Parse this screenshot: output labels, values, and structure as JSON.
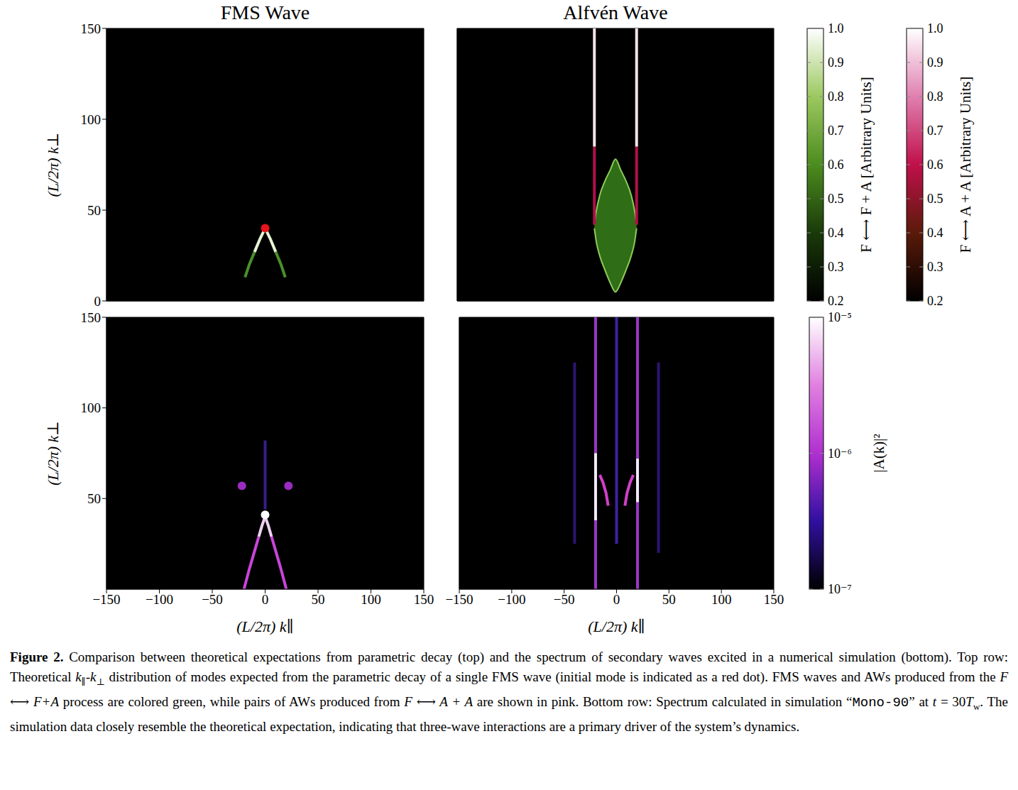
{
  "chart_data": [
    {
      "title": "FMS Wave",
      "type": "line",
      "xlim": [
        -150,
        150
      ],
      "ylim": [
        0,
        150
      ],
      "xticks": [
        {
          "value": -150,
          "label": "−150"
        },
        {
          "value": -100,
          "label": "−100"
        },
        {
          "value": -50,
          "label": "−50"
        },
        0,
        50,
        100,
        150
      ],
      "yticks": [
        0,
        50,
        100,
        150
      ],
      "tick_labels": "y",
      "ylabel": "(L/2π) k⊥",
      "series": [
        {
          "type": "line",
          "color": "#4a8f2a",
          "x": [
            -19,
            -15,
            -10
          ],
          "y": [
            13,
            20,
            27
          ]
        },
        {
          "type": "line",
          "color": "#e6f4d6",
          "x": [
            -10,
            -5,
            0
          ],
          "y": [
            27,
            34,
            40
          ]
        },
        {
          "type": "line",
          "color": "#4a8f2a",
          "x": [
            19,
            15,
            10
          ],
          "y": [
            13,
            20,
            27
          ]
        },
        {
          "type": "line",
          "color": "#e6f4d6",
          "x": [
            10,
            5,
            0
          ],
          "y": [
            27,
            34,
            40
          ]
        },
        {
          "type": "scatter",
          "color": "#e8141c",
          "x": [
            0
          ],
          "y": [
            40
          ]
        }
      ]
    },
    {
      "title": "Alfvén Wave",
      "type": "line",
      "xlim": [
        -150,
        150
      ],
      "ylim": [
        0,
        150
      ],
      "xticks": [
        {
          "value": -150,
          "label": "−150"
        },
        {
          "value": -100,
          "label": "−100"
        },
        {
          "value": -50,
          "label": "−50"
        },
        0,
        50,
        100,
        150
      ],
      "yticks": [
        0,
        50,
        100,
        150
      ],
      "tick_labels": false,
      "series": [
        {
          "type": "area",
          "color": "#2f6e16",
          "x": [
            -20,
            -18,
            -15,
            -10,
            -5,
            0,
            5,
            10,
            15,
            18,
            20
          ],
          "y_low": [
            40,
            32,
            25,
            17,
            10,
            5,
            10,
            17,
            25,
            32,
            40
          ],
          "y_high": [
            42,
            50,
            58,
            66,
            72,
            78,
            72,
            66,
            58,
            50,
            42
          ]
        },
        {
          "type": "line",
          "color": "#b0104a",
          "x": [
            -20,
            -20
          ],
          "y": [
            42,
            85
          ]
        },
        {
          "type": "line",
          "color": "#f4e4ec",
          "x": [
            -20,
            -20
          ],
          "y": [
            85,
            150
          ]
        },
        {
          "type": "line",
          "color": "#b0104a",
          "x": [
            20,
            20
          ],
          "y": [
            42,
            85
          ]
        },
        {
          "type": "line",
          "color": "#f4e4ec",
          "x": [
            20,
            20
          ],
          "y": [
            85,
            150
          ]
        }
      ]
    },
    {
      "type": "line",
      "xlim": [
        -150,
        150
      ],
      "ylim": [
        0,
        150
      ],
      "xticks": [
        {
          "value": -150,
          "label": "−150"
        },
        {
          "value": -100,
          "label": "−100"
        },
        {
          "value": -50,
          "label": "−50"
        },
        0,
        50,
        100,
        150
      ],
      "yticks": [
        50,
        100,
        150
      ],
      "tick_labels": true,
      "xlabel": "(L/2π) k∥",
      "ylabel": "(L/2π) k⊥",
      "series": [
        {
          "type": "line",
          "color": "#c845d8",
          "x": [
            -20,
            -15,
            -10,
            -6
          ],
          "y": [
            0,
            11,
            21,
            29
          ]
        },
        {
          "type": "line",
          "color": "#f0d0f4",
          "x": [
            -6,
            -3,
            0
          ],
          "y": [
            29,
            35,
            40
          ]
        },
        {
          "type": "line",
          "color": "#c845d8",
          "x": [
            20,
            15,
            10,
            6
          ],
          "y": [
            0,
            11,
            21,
            29
          ]
        },
        {
          "type": "line",
          "color": "#f0d0f4",
          "x": [
            6,
            3,
            0
          ],
          "y": [
            29,
            35,
            40
          ]
        },
        {
          "type": "line",
          "color": "#3a1c8c",
          "x": [
            0,
            0
          ],
          "y": [
            44,
            82
          ]
        },
        {
          "type": "scatter",
          "color": "#ffffff",
          "x": [
            0
          ],
          "y": [
            41
          ]
        },
        {
          "type": "scatter",
          "color": "#9a2cc0",
          "x": [
            -22,
            22
          ],
          "y": [
            57,
            57
          ]
        }
      ]
    },
    {
      "type": "line",
      "xlim": [
        -150,
        150
      ],
      "ylim": [
        0,
        150
      ],
      "xticks": [
        {
          "value": -150,
          "label": "−150"
        },
        {
          "value": -100,
          "label": "−100"
        },
        {
          "value": -50,
          "label": "−50"
        },
        0,
        50,
        100,
        150
      ],
      "yticks": [
        0,
        50,
        100,
        150
      ],
      "tick_labels": "x",
      "xlabel": "(L/2π) k∥",
      "series": [
        {
          "type": "line",
          "color": "#2c1470",
          "x": [
            -40,
            -40
          ],
          "y": [
            25,
            125
          ]
        },
        {
          "type": "line",
          "color": "#2c1470",
          "x": [
            40,
            40
          ],
          "y": [
            20,
            125
          ]
        },
        {
          "type": "line",
          "color": "#3c22a0",
          "x": [
            0,
            0
          ],
          "y": [
            25,
            150
          ]
        },
        {
          "type": "line",
          "color": "#9b36c8",
          "x": [
            -20,
            -20
          ],
          "y": [
            0,
            150
          ]
        },
        {
          "type": "line",
          "color": "#f2eafa",
          "x": [
            -20,
            -20
          ],
          "y": [
            38,
            75
          ]
        },
        {
          "type": "line",
          "color": "#9b36c8",
          "x": [
            20,
            20
          ],
          "y": [
            0,
            150
          ]
        },
        {
          "type": "line",
          "color": "#f2eafa",
          "x": [
            20,
            20
          ],
          "y": [
            48,
            72
          ]
        },
        {
          "type": "line",
          "color": "#d040c8",
          "x": [
            -16,
            -13,
            -10,
            -8
          ],
          "y": [
            63,
            59,
            53,
            46
          ]
        },
        {
          "type": "line",
          "color": "#d040c8",
          "x": [
            16,
            13,
            10,
            8
          ],
          "y": [
            63,
            59,
            53,
            46
          ]
        }
      ]
    }
  ],
  "colorbars": [
    {
      "label": "F ⟷ F + A [Arbitrary Units]",
      "range": [
        0.2,
        1.0
      ],
      "ticks": [
        0.2,
        0.3,
        0.4,
        0.5,
        0.6,
        0.7,
        0.8,
        0.9,
        {
          "value": 1,
          "label": "1.0"
        }
      ],
      "colors": [
        "#000000",
        "#1a3a0a",
        "#4c8c1e",
        "#9cc860",
        "#ffffff"
      ]
    },
    {
      "label": "F ⟷ A + A [Arbitrary Units]",
      "range": [
        0.2,
        1.0
      ],
      "ticks": [
        0.2,
        0.3,
        0.4,
        0.5,
        0.6,
        0.7,
        0.8,
        0.9,
        {
          "value": 1,
          "label": "1.0"
        }
      ],
      "colors": [
        "#000000",
        "#5a1a0a",
        "#c0104a",
        "#e080b0",
        "#ffffff"
      ]
    },
    {
      "label": "|A(k)|²",
      "range": [
        1e-07,
        1e-05
      ],
      "log": true,
      "ticks": [
        {
          "value": 1e-07,
          "label": "10⁻⁷"
        },
        {
          "value": 1e-06,
          "label": "10⁻⁶"
        },
        {
          "value": 1e-05,
          "label": "10⁻⁵"
        }
      ],
      "colors": [
        "#000000",
        "#3010a0",
        "#b030d0",
        "#e080e0",
        "#ffffff"
      ]
    }
  ],
  "caption": {
    "label": "Figure 2.",
    "runs": [
      {
        "text": " Comparison between theoretical expectations from parametric decay (top) and the spectrum of secondary waves excited in a numerical simulation (bottom). Top row: Theoretical "
      },
      {
        "text": "k",
        "style": "italic"
      },
      {
        "text": "∥",
        "style": "sub"
      },
      {
        "text": "-"
      },
      {
        "text": "k",
        "style": "italic"
      },
      {
        "text": "⊥",
        "style": "sub"
      },
      {
        "text": " distribution of modes expected from the parametric decay of a single FMS wave (initial mode is indicated as a red dot). FMS waves and AWs produced from the "
      },
      {
        "text": "F ⟷ F+A",
        "style": "italic"
      },
      {
        "text": " process are colored green, while pairs of AWs produced from "
      },
      {
        "text": "F ⟷ A + A",
        "style": "italic"
      },
      {
        "text": " are shown in pink. Bottom row: Spectrum calculated in simulation “"
      },
      {
        "text": "Mono-90",
        "style": "mono"
      },
      {
        "text": "” at "
      },
      {
        "text": "t",
        "style": "italic"
      },
      {
        "text": " = 30"
      },
      {
        "text": "T",
        "style": "italic"
      },
      {
        "text": "w",
        "style": "sub"
      },
      {
        "text": ". The simulation data closely resemble the theoretical expectation, indicating that three-wave interactions are a primary driver of the system’s dynamics."
      }
    ]
  }
}
